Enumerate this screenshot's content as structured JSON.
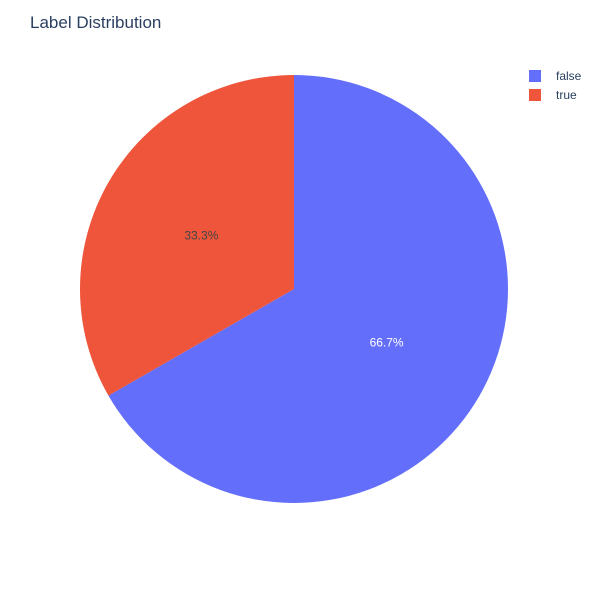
{
  "chart_data": {
    "type": "pie",
    "title": "Label Distribution",
    "categories": [
      "false",
      "true"
    ],
    "values": [
      66.7,
      33.3
    ],
    "labels": [
      "66.7%",
      "33.3%"
    ],
    "colors": [
      "#636efa",
      "#ef553b"
    ],
    "label_colors": [
      "#ffffff",
      "#444444"
    ],
    "legend_position": "top-right",
    "sort": "descending",
    "direction": "clockwise",
    "start": "top"
  },
  "legend": {
    "items": [
      {
        "label": "false",
        "color": "#636efa"
      },
      {
        "label": "true",
        "color": "#ef553b"
      }
    ]
  }
}
